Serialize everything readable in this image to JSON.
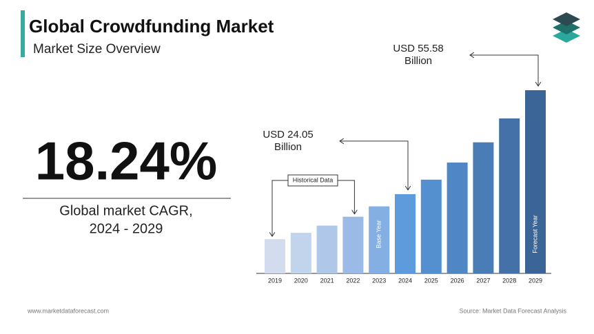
{
  "header": {
    "title": "Global Crowdfunding Market",
    "subtitle": "Market Size Overview"
  },
  "cagr": {
    "value": "18.24%",
    "label": [
      "Global market CAGR,",
      "2024 - 2029"
    ]
  },
  "chart_data": {
    "type": "bar",
    "categories": [
      "2019",
      "2020",
      "2021",
      "2022",
      "2023",
      "2024",
      "2025",
      "2026",
      "2027",
      "2028",
      "2029"
    ],
    "values": [
      10.4,
      12.3,
      14.5,
      17.2,
      20.34,
      24.05,
      28.44,
      33.63,
      39.77,
      47.02,
      55.58
    ],
    "value_labels": [
      null,
      null,
      null,
      null,
      null,
      "USD 24.05 Billion",
      null,
      null,
      null,
      null,
      "USD 55.58 Billion"
    ],
    "bar_labels": [
      null,
      null,
      null,
      null,
      "Base Year",
      null,
      null,
      null,
      null,
      null,
      "Forecast Year"
    ],
    "colors": [
      "#d3dcef",
      "#c2d3ec",
      "#afc8ea",
      "#9bbbe6",
      "#84afe3",
      "#5d9bdc",
      "#548fd0",
      "#4f86c4",
      "#4a7db6",
      "#4472a8",
      "#3a6596"
    ],
    "annotation": "Historical Data"
  },
  "footer": {
    "website": "www.marketdataforecast.com",
    "source": "Source: Market Data Forecast Analysis"
  }
}
